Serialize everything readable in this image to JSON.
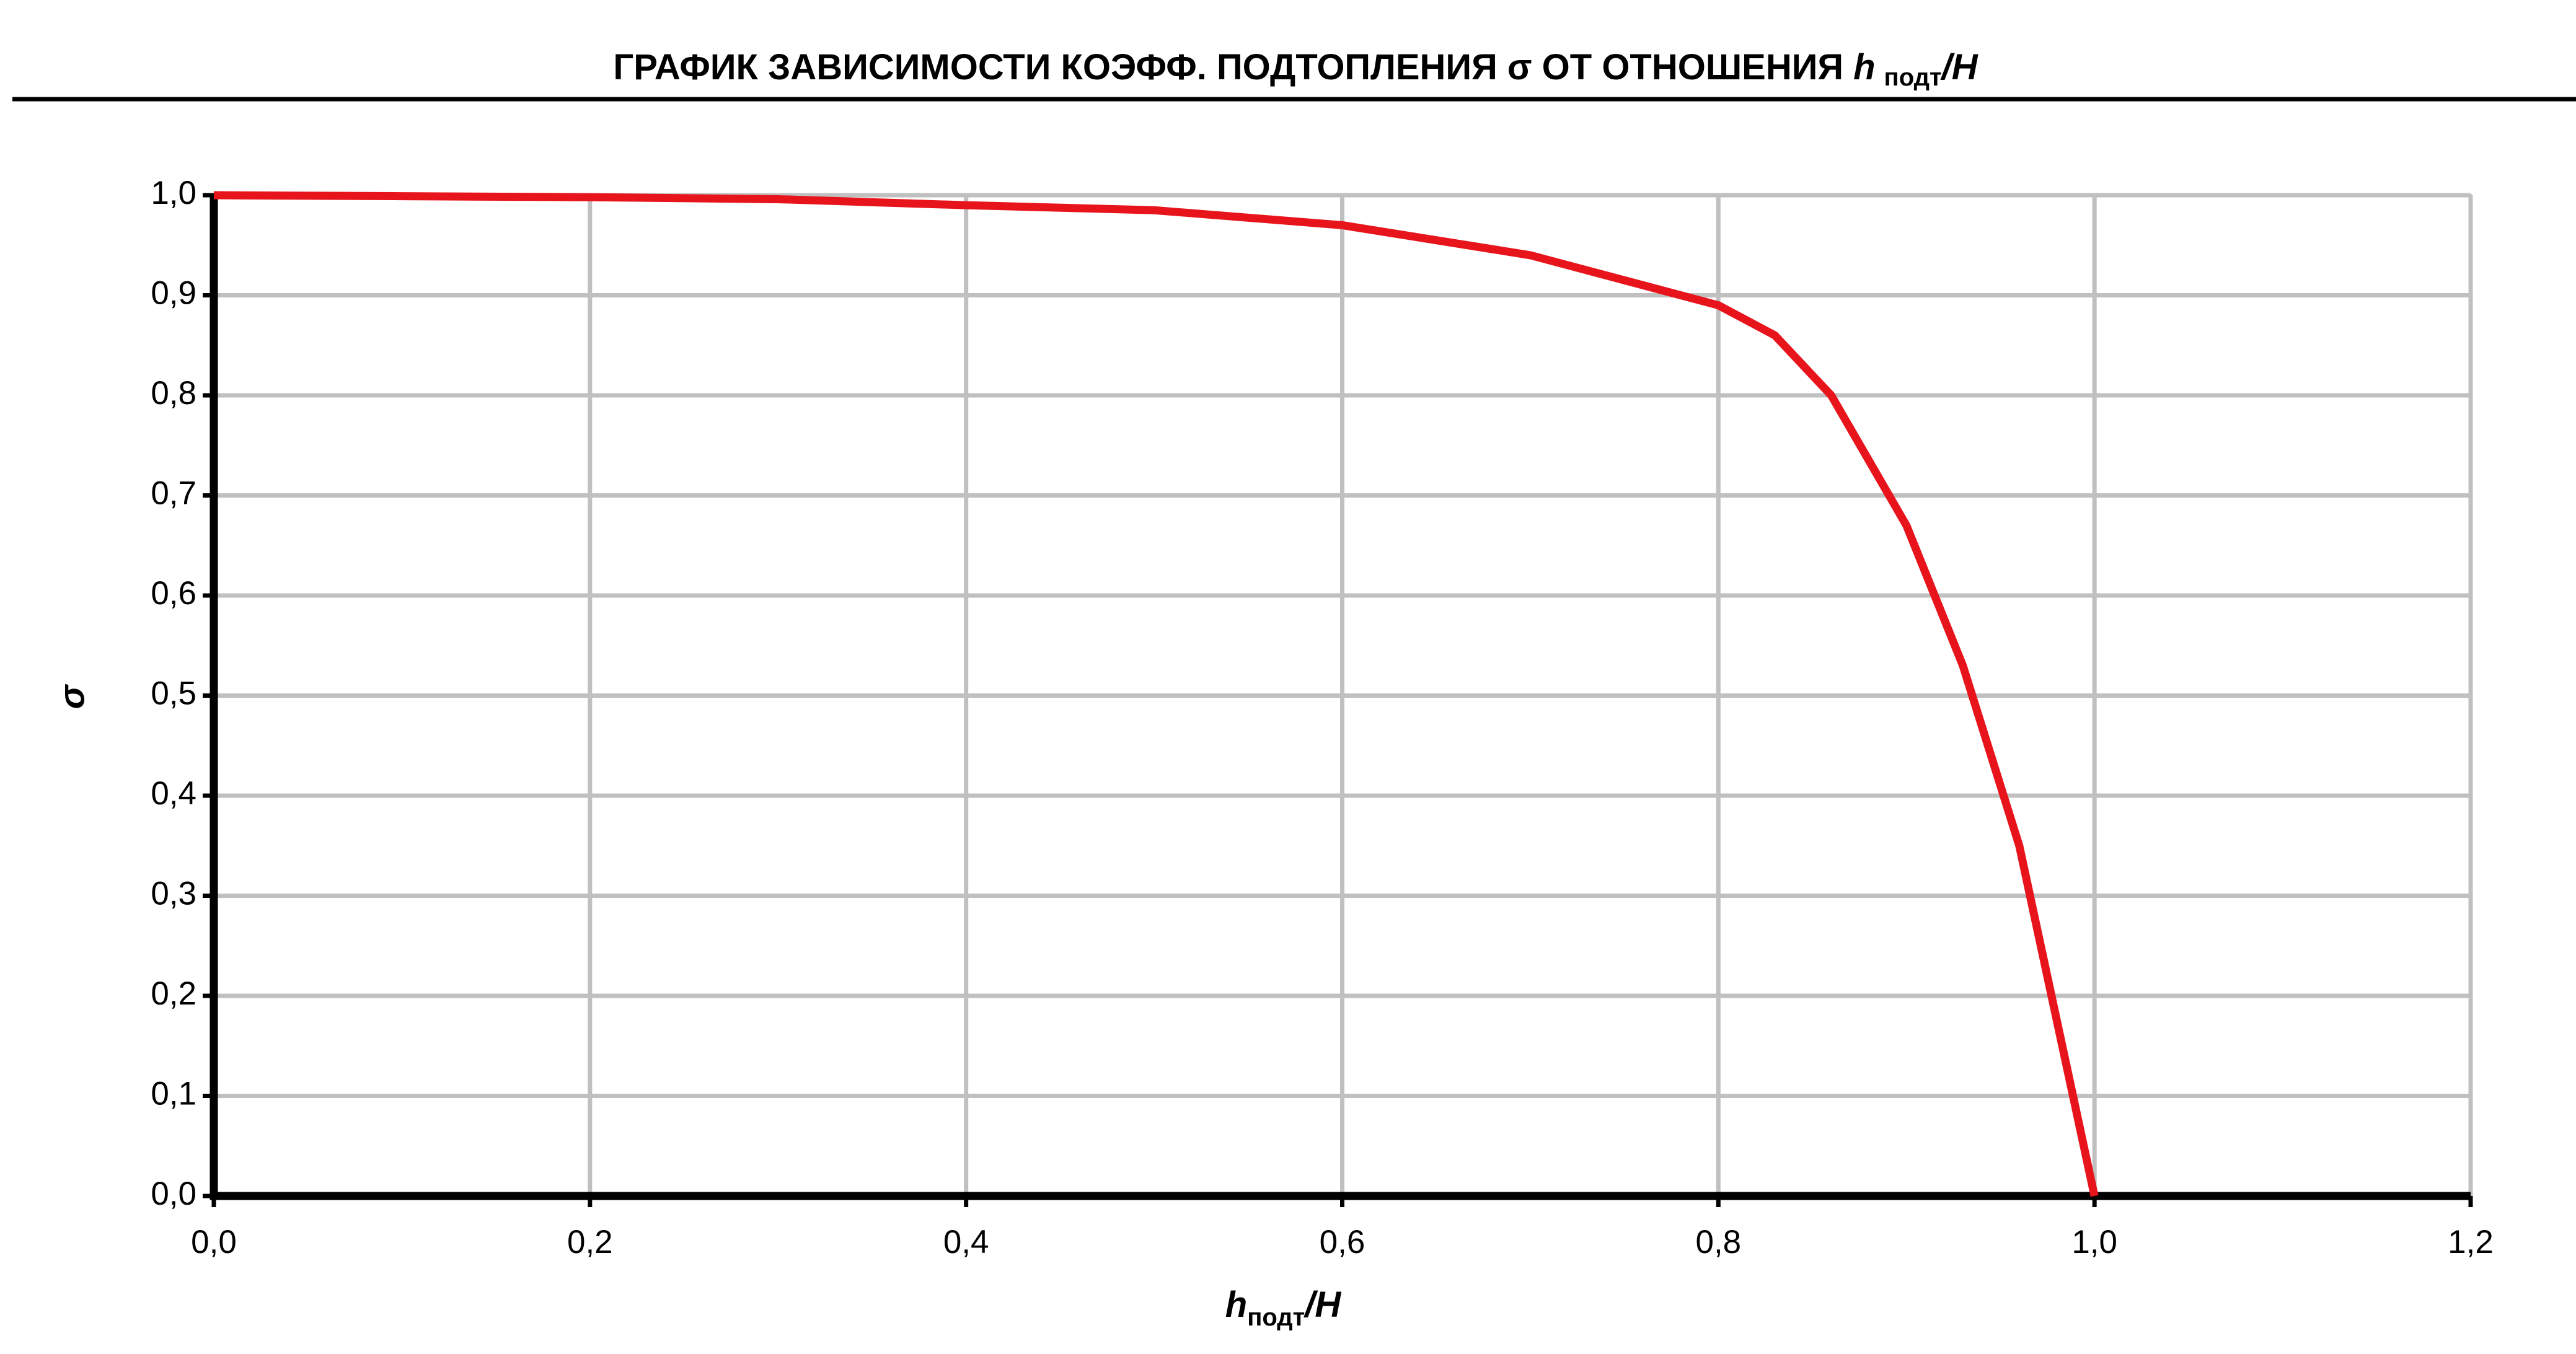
{
  "chart_data": {
    "type": "line",
    "title": {
      "main": "ГРАФИК ЗАВИСИМОСТИ КОЭФФ. ПОДТОПЛЕНИЯ σ ОТ ОТНОШЕНИЯ",
      "var": "h",
      "sub": "подт",
      "rest": "/H"
    },
    "x_label": {
      "var": "h",
      "sub": "подт",
      "rest": "/H"
    },
    "y_label": "σ",
    "x": [
      0,
      0.1,
      0.2,
      0.3,
      0.4,
      0.5,
      0.6,
      0.7,
      0.8,
      0.83,
      0.86,
      0.9,
      0.93,
      0.96,
      1.0
    ],
    "series": [
      {
        "color": "#e8141c",
        "values": [
          1.0,
          0.999,
          0.998,
          0.996,
          0.99,
          0.985,
          0.97,
          0.94,
          0.89,
          0.86,
          0.8,
          0.67,
          0.53,
          0.35,
          0.0
        ]
      }
    ],
    "xlim": [
      0,
      1.2
    ],
    "ylim": [
      0,
      1.0
    ],
    "xticks": [
      {
        "value": 0,
        "label": "0,0"
      },
      {
        "value": 0.2,
        "label": "0,2"
      },
      {
        "value": 0.4,
        "label": "0,4"
      },
      {
        "value": 0.6,
        "label": "0,6"
      },
      {
        "value": 0.8,
        "label": "0,8"
      },
      {
        "value": 1.0,
        "label": "1,0"
      },
      {
        "value": 1.2,
        "label": "1,2"
      }
    ],
    "yticks": [
      {
        "value": 0,
        "label": "0,0"
      },
      {
        "value": 0.1,
        "label": "0,1"
      },
      {
        "value": 0.2,
        "label": "0,2"
      },
      {
        "value": 0.3,
        "label": "0,3"
      },
      {
        "value": 0.4,
        "label": "0,4"
      },
      {
        "value": 0.5,
        "label": "0,5"
      },
      {
        "value": 0.6,
        "label": "0,6"
      },
      {
        "value": 0.7,
        "label": "0,7"
      },
      {
        "value": 0.8,
        "label": "0,8"
      },
      {
        "value": 0.9,
        "label": "0,9"
      },
      {
        "value": 1.0,
        "label": "1,0"
      }
    ],
    "grid": true
  }
}
